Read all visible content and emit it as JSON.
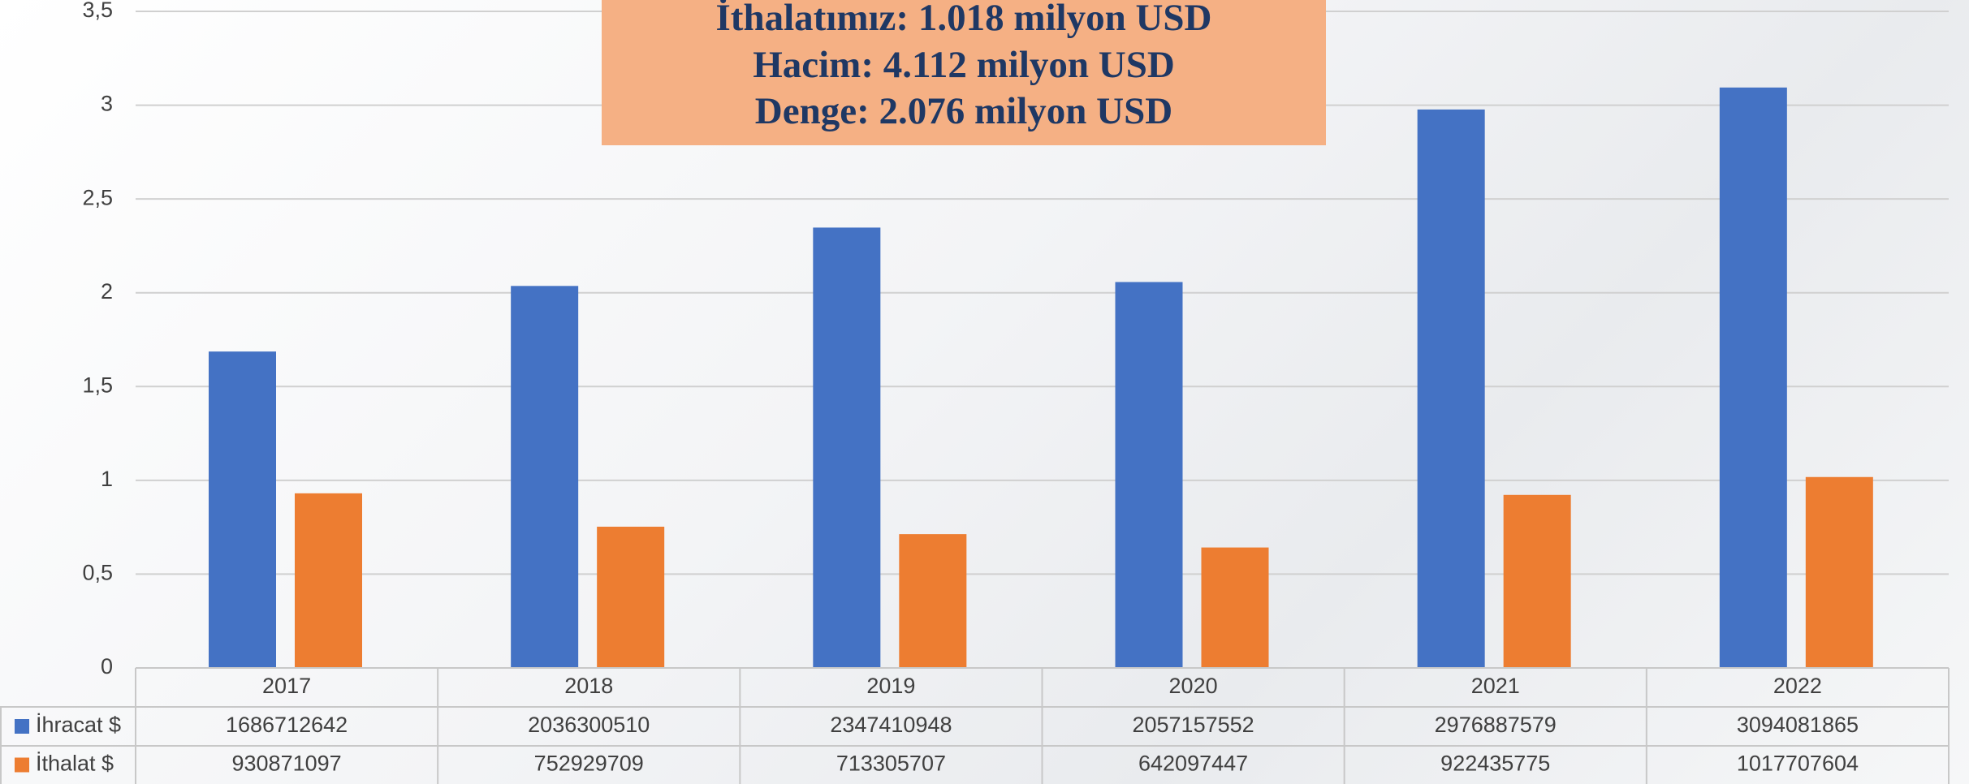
{
  "chart_data": {
    "type": "bar",
    "annotations": [
      "İthalatımız: 1.018 milyon USD",
      "Hacim: 4.112 milyon USD",
      "Denge: 2.076 milyon USD"
    ],
    "categories": [
      "2017",
      "2018",
      "2019",
      "2020",
      "2021",
      "2022"
    ],
    "series": [
      {
        "name": "İhracat $",
        "color": "#4472c4",
        "values": [
          1.686712642,
          2.03630051,
          2.347410948,
          2.057157552,
          2.976887579,
          3.094081865
        ],
        "value_labels": [
          "1686712642",
          "2036300510",
          "2347410948",
          "2057157552",
          "2976887579",
          "3094081865"
        ]
      },
      {
        "name": "İthalat $",
        "color": "#ed7d31",
        "values": [
          0.930871097,
          0.752929709,
          0.713305707,
          0.642097447,
          0.922435775,
          1.017707604
        ],
        "value_labels": [
          "930871097",
          "752929709",
          "713305707",
          "642097447",
          "922435775",
          "1017707604"
        ]
      }
    ],
    "ylim": [
      0,
      3.5
    ],
    "yticks": [
      0,
      {
        "value": 0.5,
        "label": "0,5"
      },
      1,
      {
        "value": 1.5,
        "label": "1,5"
      },
      2,
      {
        "value": 2.5,
        "label": "2,5"
      },
      3,
      {
        "value": 3.5,
        "label": "3,5"
      }
    ],
    "grid": true,
    "data_table": true
  }
}
